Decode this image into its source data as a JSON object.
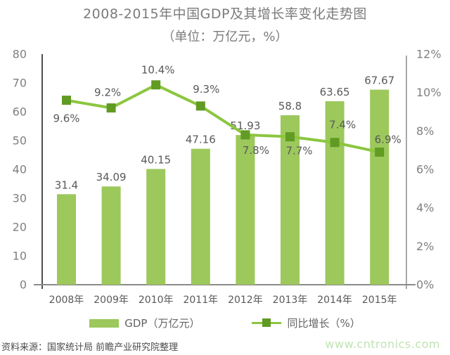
{
  "title": {
    "line1": "2008-2015年中国GDP及其增长率变化走势图",
    "line2": "（单位：万亿元，%）"
  },
  "chart_data": {
    "type": "bar",
    "subtype": "bar+line combo, dual y-axes",
    "categories": [
      "2008年",
      "2009年",
      "2010年",
      "2011年",
      "2012年",
      "2013年",
      "2014年",
      "2015年"
    ],
    "series": [
      {
        "name": "GDP（万亿元）",
        "type": "bar",
        "axis": "left",
        "values": [
          31.4,
          34.09,
          40.15,
          47.16,
          51.93,
          58.8,
          63.65,
          67.67
        ],
        "labels": [
          "31.4",
          "34.09",
          "40.15",
          "47.16",
          "51.93",
          "58.8",
          "63.65",
          "67.67"
        ]
      },
      {
        "name": "同比增长（%）",
        "type": "line",
        "axis": "right",
        "values": [
          9.6,
          9.2,
          10.4,
          9.3,
          7.8,
          7.7,
          7.4,
          6.9
        ],
        "labels": [
          "9.6%",
          "9.2%",
          "10.4%",
          "9.3%",
          "7.8%",
          "7.7%",
          "7.4%",
          "6.9%"
        ]
      }
    ],
    "left_axis": {
      "min": 0,
      "max": 80,
      "step": 10,
      "ticks": [
        "0",
        "10",
        "20",
        "30",
        "40",
        "50",
        "60",
        "70",
        "80"
      ]
    },
    "right_axis": {
      "min": 0,
      "max": 12,
      "step": 2,
      "ticks": [
        "0%",
        "2%",
        "4%",
        "6%",
        "8%",
        "10%",
        "12%"
      ]
    },
    "grid": false,
    "legend_position": "bottom",
    "title": "2008-2015年中国GDP及其增长率变化走势图（单位：万亿元，%）"
  },
  "colors": {
    "bar_fill": "#9cc85c",
    "line_stroke": "#8cc63f",
    "marker_fill": "#619b23",
    "axis_left_spine": "#4f4f4f",
    "axis_bottom": "#8a8a8a",
    "axis_right_spine": "#a8a8a8",
    "tick_label": "#7f7f7f",
    "data_label": "#595959",
    "x_label": "#595959",
    "title_text": "#7b7b7b",
    "legend_text": "#636363",
    "source_text": "#4a4a4a",
    "watermark_text": "#bfe3b3"
  },
  "footer": {
    "source": "资料来源：国家统计局 前瞻产业研究院整理",
    "watermark": "www.cntronics.com"
  }
}
